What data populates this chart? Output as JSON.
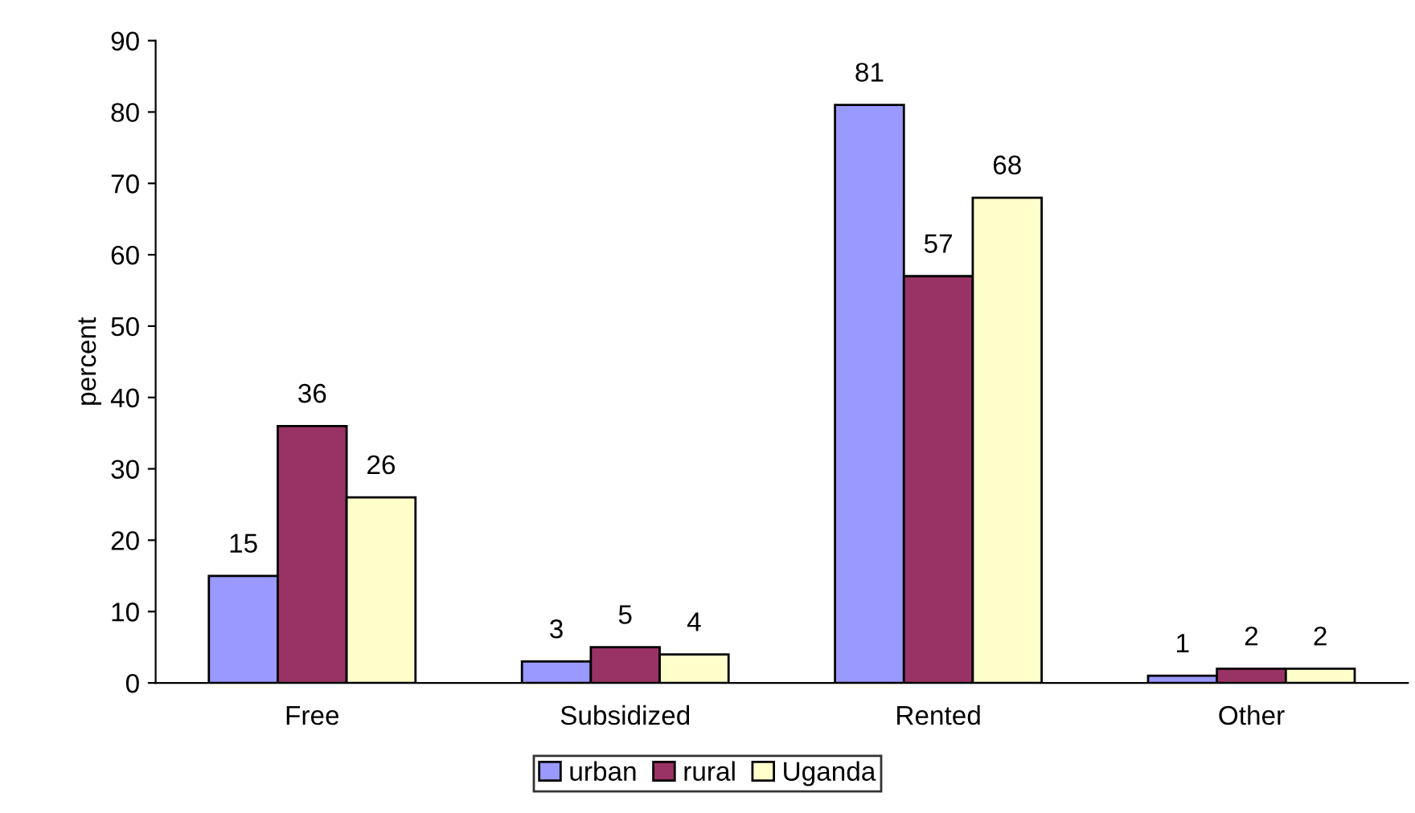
{
  "chart_data": {
    "type": "bar",
    "ylabel": "percent",
    "categories": [
      "Free",
      "Subsidized",
      "Rented",
      "Other"
    ],
    "series": [
      {
        "name": "urban",
        "color": "#9999ff",
        "values": [
          15,
          3,
          81,
          1
        ]
      },
      {
        "name": "rural",
        "color": "#993366",
        "values": [
          36,
          5,
          57,
          2
        ]
      },
      {
        "name": "Uganda",
        "color": "#ffffcc",
        "values": [
          26,
          4,
          68,
          2
        ]
      }
    ],
    "ylim": [
      0,
      90
    ],
    "yticks": [
      0,
      10,
      20,
      30,
      40,
      50,
      60,
      70,
      80,
      90
    ],
    "grid": false,
    "legend": "bottom",
    "data_labels": true
  }
}
